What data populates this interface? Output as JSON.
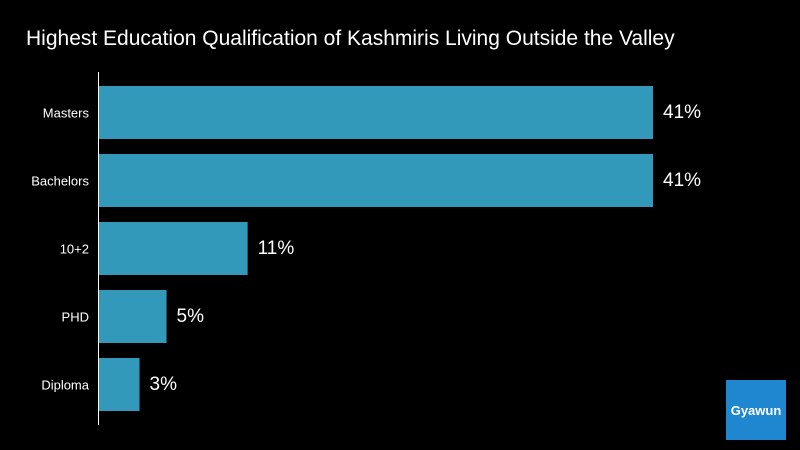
{
  "title": "Highest Education Qualification of Kashmiris Living Outside the Valley",
  "brand": "Gyawun",
  "colors": {
    "background": "#000000",
    "bar": "#3399bb",
    "brand": "#1f86d0"
  },
  "chart_data": {
    "type": "bar",
    "orientation": "horizontal",
    "categories": [
      "Masters",
      "Bachelors",
      "10+2",
      "PHD",
      "Diploma"
    ],
    "values": [
      41,
      41,
      11,
      5,
      3
    ],
    "value_labels": [
      "41%",
      "41%",
      "11%",
      "5%",
      "3%"
    ],
    "title": "Highest Education Qualification of Kashmiris Living Outside the Valley",
    "xlabel": "",
    "ylabel": "",
    "unit": "%",
    "grid": false,
    "legend": "none"
  }
}
